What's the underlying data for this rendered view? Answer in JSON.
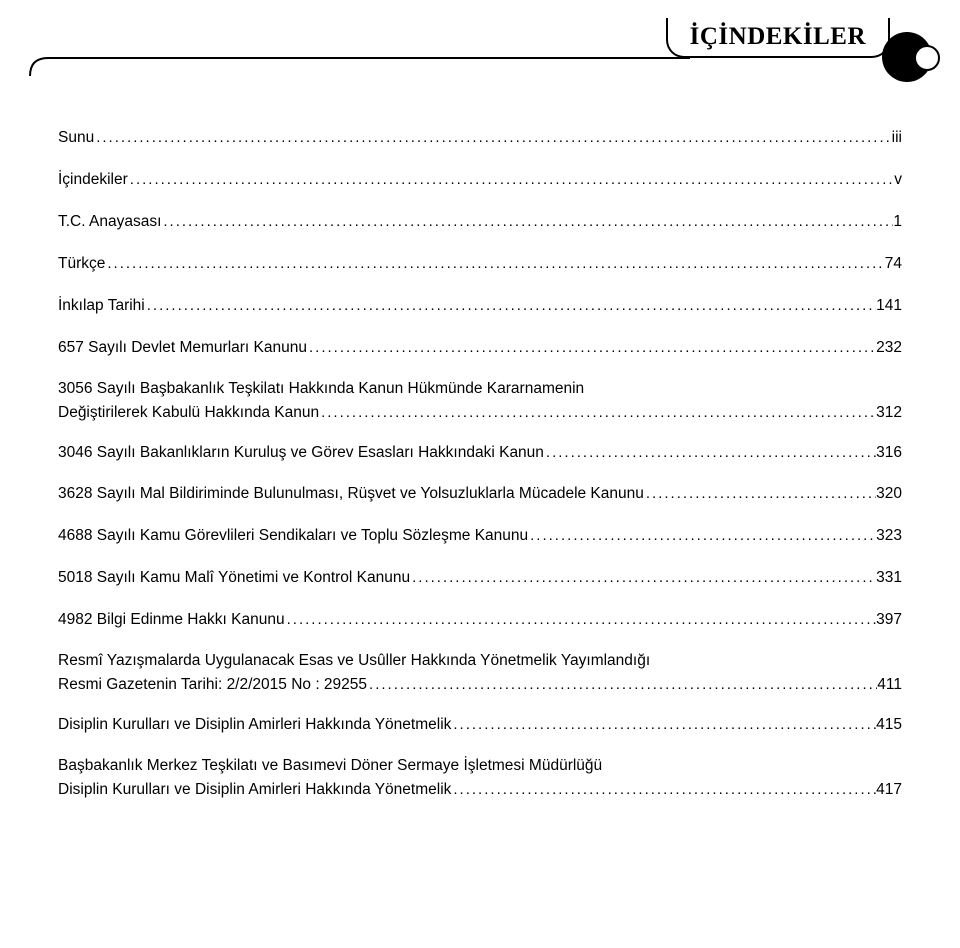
{
  "header": {
    "title": "İÇİNDEKİLER"
  },
  "toc": [
    {
      "title": "Sunu",
      "page": "iii"
    },
    {
      "title": "İçindekiler",
      "page": "v"
    },
    {
      "title": "T.C. Anayasası",
      "page": "1"
    },
    {
      "title": "Türkçe",
      "page": "74"
    },
    {
      "title": "İnkılap Tarihi",
      "page": "141"
    },
    {
      "title": "657 Sayılı Devlet Memurları Kanunu",
      "page": "232"
    },
    {
      "line1": "3056 Sayılı Başbakanlık Teşkilatı Hakkında Kanun Hükmünde Kararnamenin",
      "line2": "Değiştirilerek Kabulü Hakkında Kanun",
      "page": "312"
    },
    {
      "title": "3046 Sayılı Bakanlıkların Kuruluş ve Görev Esasları Hakkındaki Kanun",
      "page": "316"
    },
    {
      "title": "3628 Sayılı Mal Bildiriminde Bulunulması, Rüşvet ve Yolsuzluklarla Mücadele Kanunu",
      "page": "320"
    },
    {
      "title": "4688 Sayılı Kamu Görevlileri Sendikaları ve Toplu Sözleşme Kanunu",
      "page": "323"
    },
    {
      "title": "5018 Sayılı Kamu Malî Yönetimi ve Kontrol Kanunu",
      "page": "331"
    },
    {
      "title": "4982 Bilgi Edinme Hakkı Kanunu",
      "page": "397"
    },
    {
      "line1": "Resmî Yazışmalarda Uygulanacak Esas ve Usûller Hakkında Yönetmelik Yayımlandığı",
      "line2": "Resmi Gazetenin Tarihi: 2/2/2015 No : 29255",
      "page": "411"
    },
    {
      "title": "Disiplin Kurulları ve Disiplin Amirleri Hakkında Yönetmelik",
      "page": "415"
    },
    {
      "line1": "Başbakanlık Merkez Teşkilatı ve Basımevi Döner Sermaye İşletmesi Müdürlüğü",
      "line2": "Disiplin Kurulları ve Disiplin Amirleri Hakkında Yönetmelik",
      "page": "417"
    }
  ]
}
